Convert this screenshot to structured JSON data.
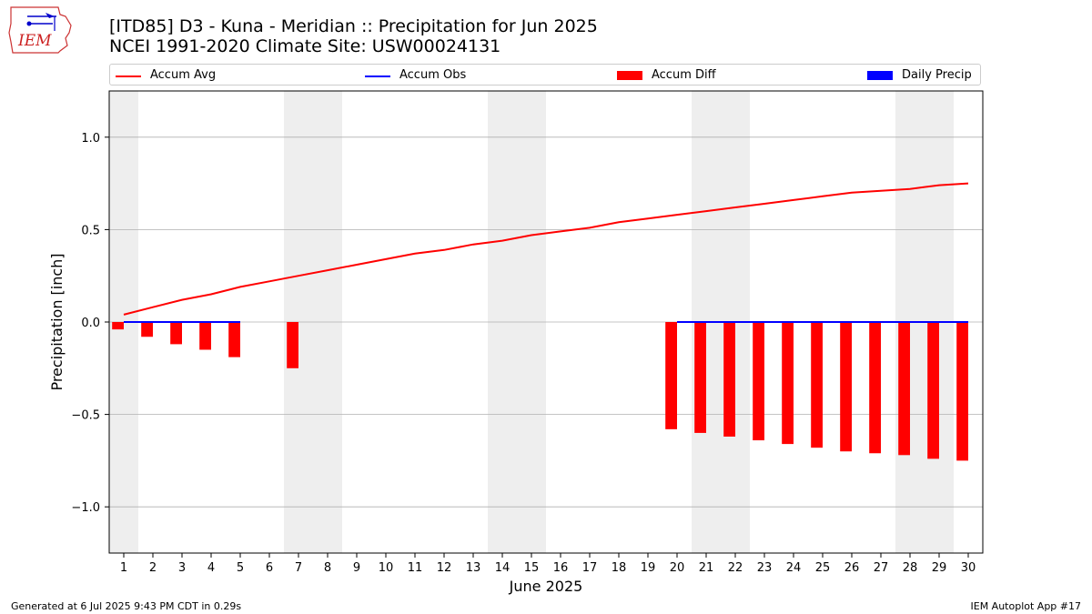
{
  "title_line1": "[ITD85] D3 - Kuna - Meridian  :: Precipitation for Jun 2025",
  "title_line2": "NCEI 1991-2020 Climate Site: USW00024131",
  "logo_text": "IEM",
  "legend": {
    "accum_avg": "Accum Avg",
    "accum_obs": "Accum Obs",
    "accum_diff": "Accum Diff",
    "daily_precip": "Daily Precip"
  },
  "footer": {
    "generated": "Generated at 6 Jul 2025 9:43 PM CDT in 0.29s",
    "app": "IEM Autoplot App #17"
  },
  "colors": {
    "avg": "#ff0000",
    "obs": "#0000ff",
    "diff": "#ff0000",
    "daily": "#0000ff",
    "weekend_shade": "#eeeeee",
    "grid": "#b0b0b0"
  },
  "chart_data": {
    "type": "bar",
    "xlabel": "June 2025",
    "ylabel": "Precipitation [inch]",
    "xlim": [
      0.5,
      30.5
    ],
    "ylim": [
      -1.25,
      1.25
    ],
    "x_ticks": [
      1,
      2,
      3,
      4,
      5,
      6,
      7,
      8,
      9,
      10,
      11,
      12,
      13,
      14,
      15,
      16,
      17,
      18,
      19,
      20,
      21,
      22,
      23,
      24,
      25,
      26,
      27,
      28,
      29,
      30
    ],
    "y_ticks": [
      -1.0,
      -0.5,
      0.0,
      0.5,
      1.0
    ],
    "y_tick_labels": [
      "−1.0",
      "−0.5",
      "0.0",
      "0.5",
      "1.0"
    ],
    "grid": "horizontal",
    "legend_position": "top",
    "weekend_days": [
      1,
      7,
      8,
      14,
      15,
      21,
      22,
      28,
      29
    ],
    "series": [
      {
        "name": "Accum Avg",
        "kind": "line",
        "x": [
          1,
          2,
          3,
          4,
          5,
          6,
          7,
          8,
          9,
          10,
          11,
          12,
          13,
          14,
          15,
          16,
          17,
          18,
          19,
          20,
          21,
          22,
          23,
          24,
          25,
          26,
          27,
          28,
          29,
          30
        ],
        "values": [
          0.04,
          0.08,
          0.12,
          0.15,
          0.19,
          0.22,
          0.25,
          0.28,
          0.31,
          0.34,
          0.37,
          0.39,
          0.42,
          0.44,
          0.47,
          0.49,
          0.51,
          0.54,
          0.56,
          0.58,
          0.6,
          0.62,
          0.64,
          0.66,
          0.68,
          0.7,
          0.71,
          0.72,
          0.74,
          0.75
        ]
      },
      {
        "name": "Accum Obs",
        "kind": "line",
        "segments": [
          {
            "x": [
              1,
              2,
              3,
              4,
              5
            ],
            "values": [
              0,
              0,
              0,
              0,
              0
            ]
          },
          {
            "x": [
              20,
              21,
              22,
              23,
              24,
              25,
              26,
              27,
              28,
              29,
              30
            ],
            "values": [
              0,
              0,
              0,
              0,
              0,
              0,
              0,
              0,
              0,
              0,
              0
            ]
          }
        ]
      },
      {
        "name": "Accum Diff",
        "kind": "bar",
        "x": [
          1,
          2,
          3,
          4,
          5,
          7,
          20,
          21,
          22,
          23,
          24,
          25,
          26,
          27,
          28,
          29,
          30
        ],
        "values": [
          -0.04,
          -0.08,
          -0.12,
          -0.15,
          -0.19,
          -0.25,
          -0.58,
          -0.6,
          -0.62,
          -0.64,
          -0.66,
          -0.68,
          -0.7,
          -0.71,
          -0.72,
          -0.74,
          -0.75
        ]
      },
      {
        "name": "Daily Precip",
        "kind": "bar",
        "x": [],
        "values": []
      }
    ]
  }
}
